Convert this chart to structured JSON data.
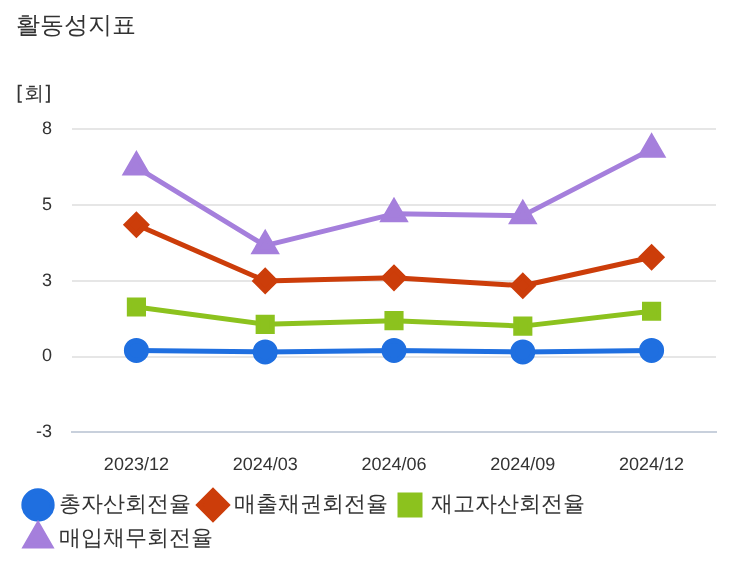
{
  "chart_data": {
    "type": "line",
    "title": "활동성지표",
    "ylabel": "[회]",
    "categories": [
      "2023/12",
      "2024/03",
      "2024/06",
      "2024/09",
      "2024/12"
    ],
    "series": [
      {
        "name": "총자산회전율",
        "color": "#1f6fe0",
        "marker": "circle",
        "values": [
          0.2,
          0.15,
          0.2,
          0.15,
          0.2
        ]
      },
      {
        "name": "매출채권회전율",
        "color": "#cc3d0a",
        "marker": "diamond",
        "values": [
          4.34,
          2.49,
          2.59,
          2.33,
          3.27
        ]
      },
      {
        "name": "재고자산회전율",
        "color": "#8cc21e",
        "marker": "square",
        "values": [
          1.63,
          1.06,
          1.18,
          1.0,
          1.49
        ]
      },
      {
        "name": "매입채무회전율",
        "color": "#a57fdc",
        "marker": "triangle",
        "values": [
          6.24,
          3.65,
          4.7,
          4.64,
          6.83
        ]
      }
    ],
    "ylim": [
      -2.5,
      7.5
    ],
    "yticks": [
      {
        "value": -2.5,
        "label": "-3"
      },
      {
        "value": 0,
        "label": "0"
      },
      {
        "value": 2.5,
        "label": "3"
      },
      {
        "value": 5,
        "label": "5"
      },
      {
        "value": 7.5,
        "label": "8"
      }
    ],
    "grid": "y",
    "legend": "bottom"
  }
}
